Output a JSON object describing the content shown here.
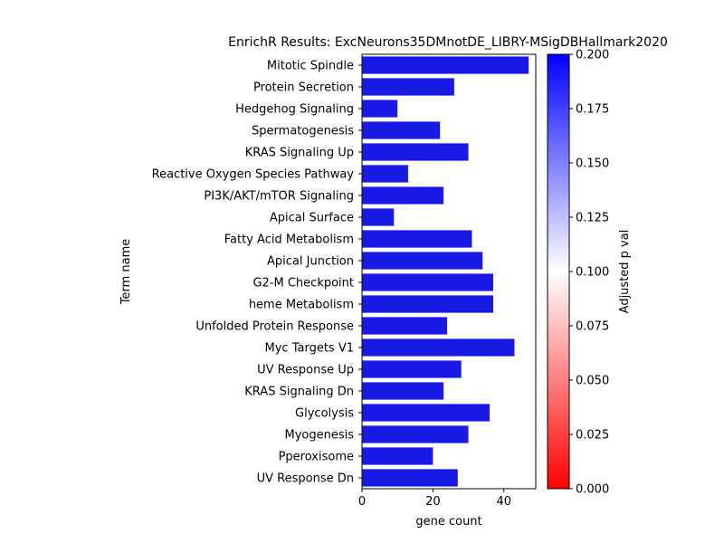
{
  "chart_data": {
    "type": "bar",
    "orientation": "horizontal",
    "title": "EnrichR Results: ExcNeurons35DMnotDE_LIBRY-MSigDBHallmark2020",
    "xlabel": "gene count",
    "ylabel": "Term name",
    "xlim": [
      0,
      49
    ],
    "xticks": [
      "0",
      "20",
      "40"
    ],
    "xtick_values": [
      0,
      20,
      40
    ],
    "categories": [
      "Mitotic Spindle",
      "Protein Secretion",
      "Hedgehog Signaling",
      "Spermatogenesis",
      "KRAS Signaling Up",
      "Reactive Oxygen Species Pathway",
      "PI3K/AKT/mTOR  Signaling",
      "Apical Surface",
      "Fatty Acid Metabolism",
      "Apical Junction",
      "G2-M Checkpoint",
      "heme Metabolism",
      "Unfolded Protein Response",
      "Myc Targets V1",
      "UV Response Up",
      "KRAS Signaling Dn",
      "Glycolysis",
      "Myogenesis",
      "Pperoxisome",
      "UV Response Dn"
    ],
    "values": [
      47,
      26,
      10,
      22,
      30,
      13,
      23,
      9,
      31,
      34,
      37,
      37,
      24,
      43,
      28,
      23,
      36,
      30,
      20,
      27
    ],
    "bar_color": "#1a1ae6",
    "colorbar": {
      "label": "Adjusted p val",
      "range": [
        0.0,
        0.2
      ],
      "ticks": [
        "0.000",
        "0.025",
        "0.050",
        "0.075",
        "0.100",
        "0.125",
        "0.150",
        "0.175",
        "0.200"
      ],
      "tick_values": [
        0.0,
        0.025,
        0.05,
        0.075,
        0.1,
        0.125,
        0.15,
        0.175,
        0.2
      ],
      "colors": [
        "#ff0000",
        "#ffffff",
        "#0000ff"
      ]
    },
    "grid": false,
    "legend": "none"
  }
}
